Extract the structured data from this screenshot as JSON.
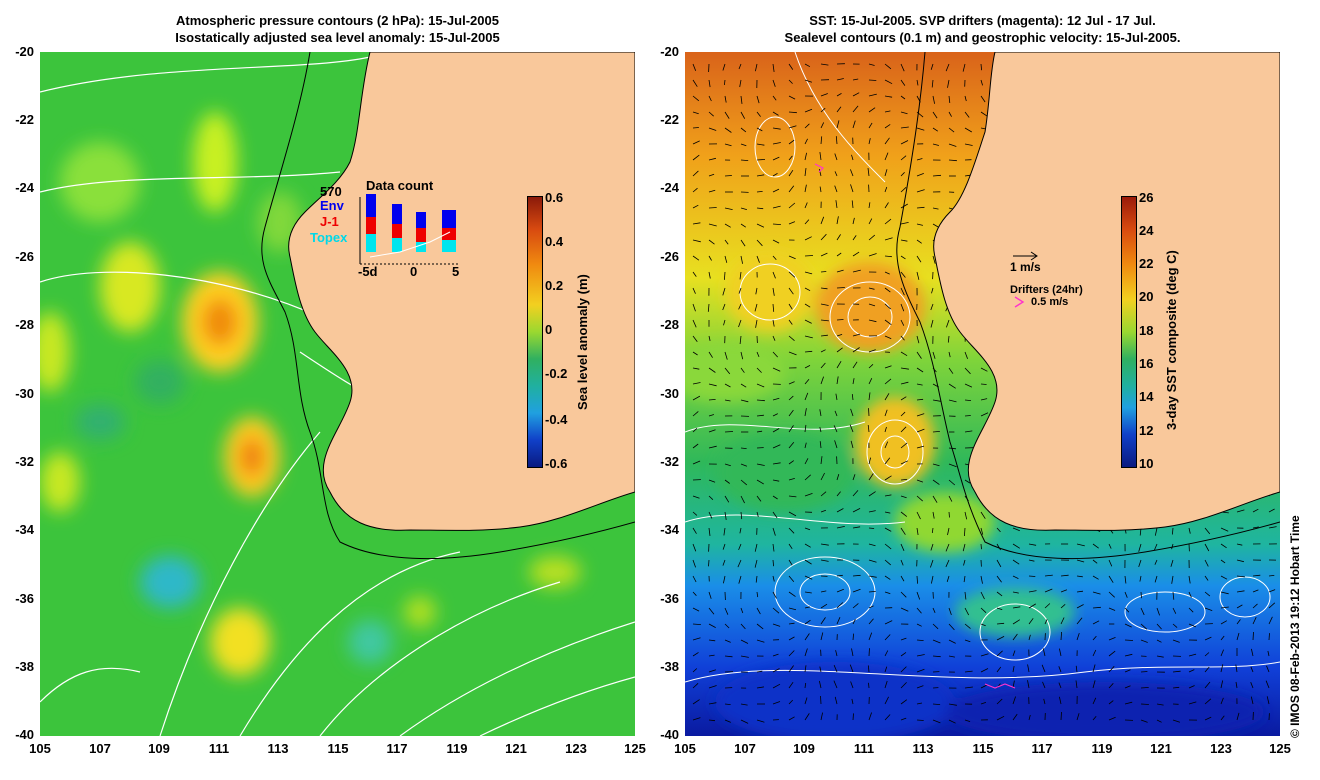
{
  "left": {
    "title_line1": "Atmospheric pressure contours (2 hPa): 15-Jul-2005",
    "title_line2": "Isostatically adjusted sea level anomaly: 15-Jul-2005",
    "colorbar": {
      "label": "Sea level anomaly (m)",
      "ticks": [
        "0.6",
        "0.4",
        "0.2",
        "0",
        "-0.2",
        "-0.4",
        "-0.6"
      ]
    },
    "inset": {
      "title": "Data count",
      "max_label": "570",
      "env": "Env",
      "j1": "J-1",
      "topex": "Topex",
      "x_ticks": [
        "-5d",
        "0",
        "5"
      ]
    }
  },
  "right": {
    "title_line1": "SST: 15-Jul-2005. SVP drifters (magenta): 12 Jul - 17 Jul.",
    "title_line2": "Sealevel contours (0.1 m) and geostrophic velocity: 15-Jul-2005.",
    "colorbar": {
      "label": "3-day SST composite (deg C)",
      "ticks": [
        "26",
        "24",
        "22",
        "20",
        "18",
        "16",
        "14",
        "12",
        "10"
      ]
    },
    "legend": {
      "velocity": "1 m/s",
      "drifters_title": "Drifters (24hr)",
      "drifters_speed": "0.5 m/s"
    }
  },
  "axes": {
    "y_ticks": [
      "-20",
      "-22",
      "-24",
      "-26",
      "-28",
      "-30",
      "-32",
      "-34",
      "-36",
      "-38",
      "-40"
    ],
    "x_ticks": [
      "105",
      "107",
      "109",
      "111",
      "113",
      "115",
      "117",
      "119",
      "121",
      "123",
      "125"
    ]
  },
  "credit": "© IMOS 08-Feb-2013 19:12 Hobart Time",
  "colors": {
    "land": "#f9c89b",
    "magenta": "#ff33cc",
    "env_blue": "#0000ee",
    "j1_red": "#ee0000",
    "topex_cyan": "#00e5ee"
  }
}
